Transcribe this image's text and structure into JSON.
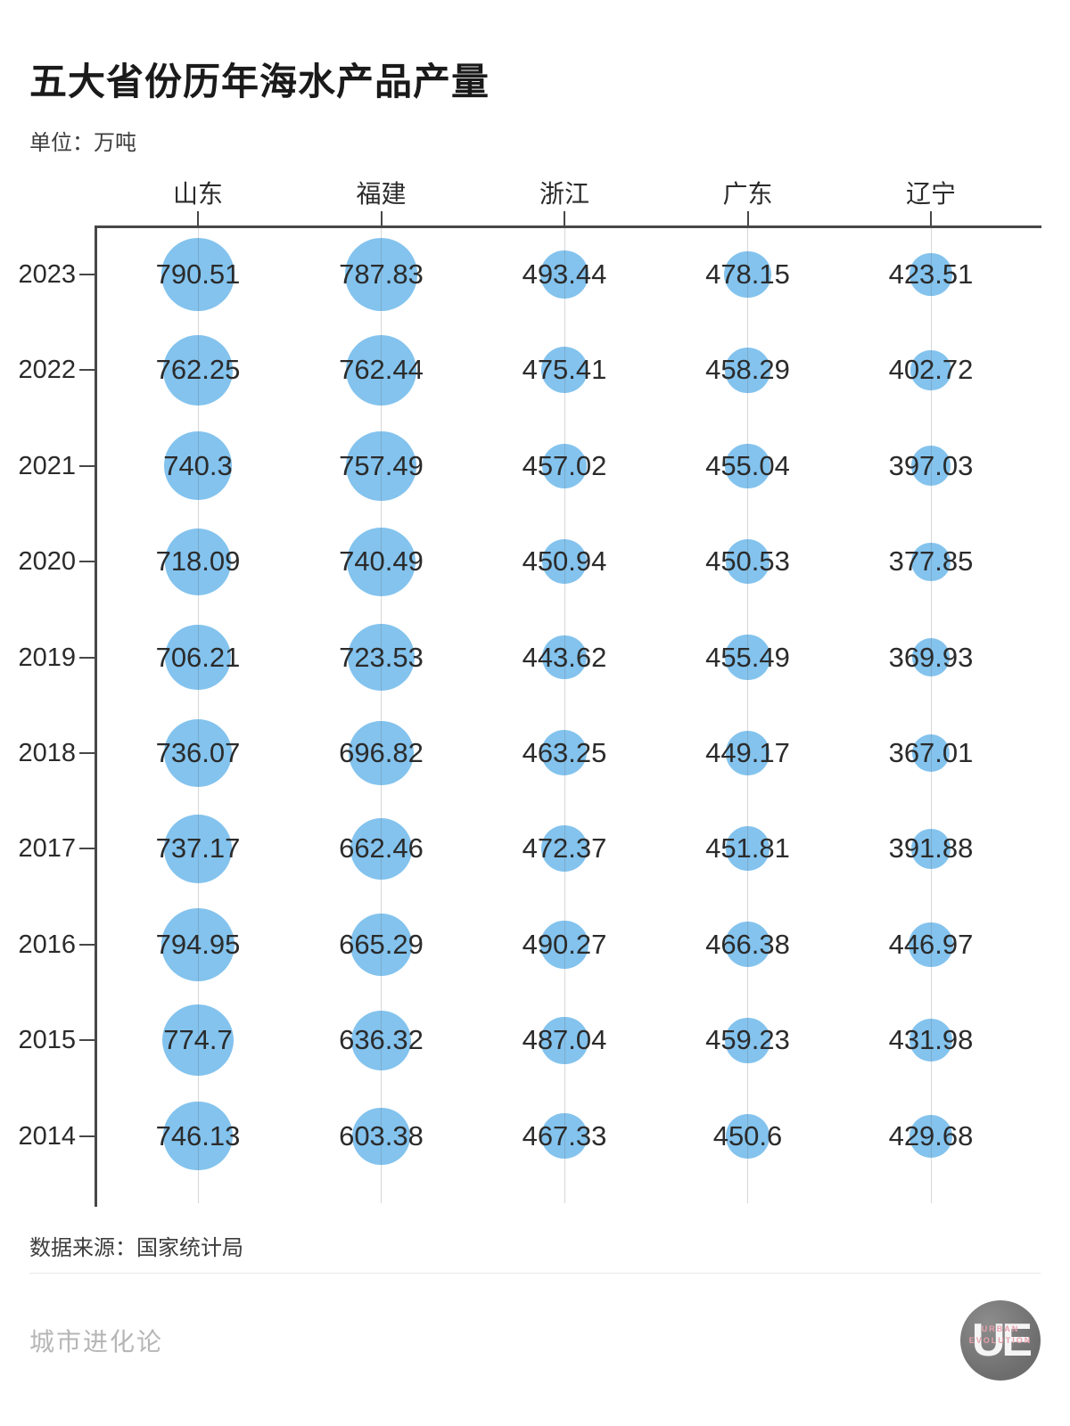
{
  "title": "五大省份历年海水产品产量",
  "unit_label": "单位：万吨",
  "source_label": "数据来源：国家统计局",
  "footer": {
    "brand": "城市进化论",
    "logo_text": "UE",
    "logo_sub1": "URBAN",
    "logo_sub2": "EVOLUTION"
  },
  "colors": {
    "bubble": "#83C3EE",
    "axis": "#474747",
    "text": "#2b2b2b",
    "brand_gray": "#b6b6b6",
    "logo_pink": "#e8a1ad"
  },
  "chart_data": {
    "type": "scatter",
    "subtype": "bubble-matrix",
    "title": "五大省份历年海水产品产量",
    "unit": "万吨",
    "columns": [
      "山东",
      "福建",
      "浙江",
      "广东",
      "辽宁"
    ],
    "rows": [
      "2023",
      "2022",
      "2021",
      "2020",
      "2019",
      "2018",
      "2017",
      "2016",
      "2015",
      "2014"
    ],
    "values": [
      [
        "790.51",
        "787.83",
        "493.44",
        "478.15",
        "423.51"
      ],
      [
        "762.25",
        "762.44",
        "475.41",
        "458.29",
        "402.72"
      ],
      [
        "740.3",
        "757.49",
        "457.02",
        "455.04",
        "397.03"
      ],
      [
        "718.09",
        "740.49",
        "450.94",
        "450.53",
        "377.85"
      ],
      [
        "706.21",
        "723.53",
        "443.62",
        "455.49",
        "369.93"
      ],
      [
        "736.07",
        "696.82",
        "463.25",
        "449.17",
        "367.01"
      ],
      [
        "737.17",
        "662.46",
        "472.37",
        "451.81",
        "391.88"
      ],
      [
        "794.95",
        "665.29",
        "490.27",
        "466.38",
        "446.97"
      ],
      [
        "774.7",
        "636.32",
        "487.04",
        "459.23",
        "431.98"
      ],
      [
        "746.13",
        "603.38",
        "467.33",
        "450.6",
        "429.68"
      ]
    ],
    "bubble_size_encodes": "value",
    "legend_position": "none",
    "grid": "vertical-only",
    "source": "国家统计局"
  }
}
